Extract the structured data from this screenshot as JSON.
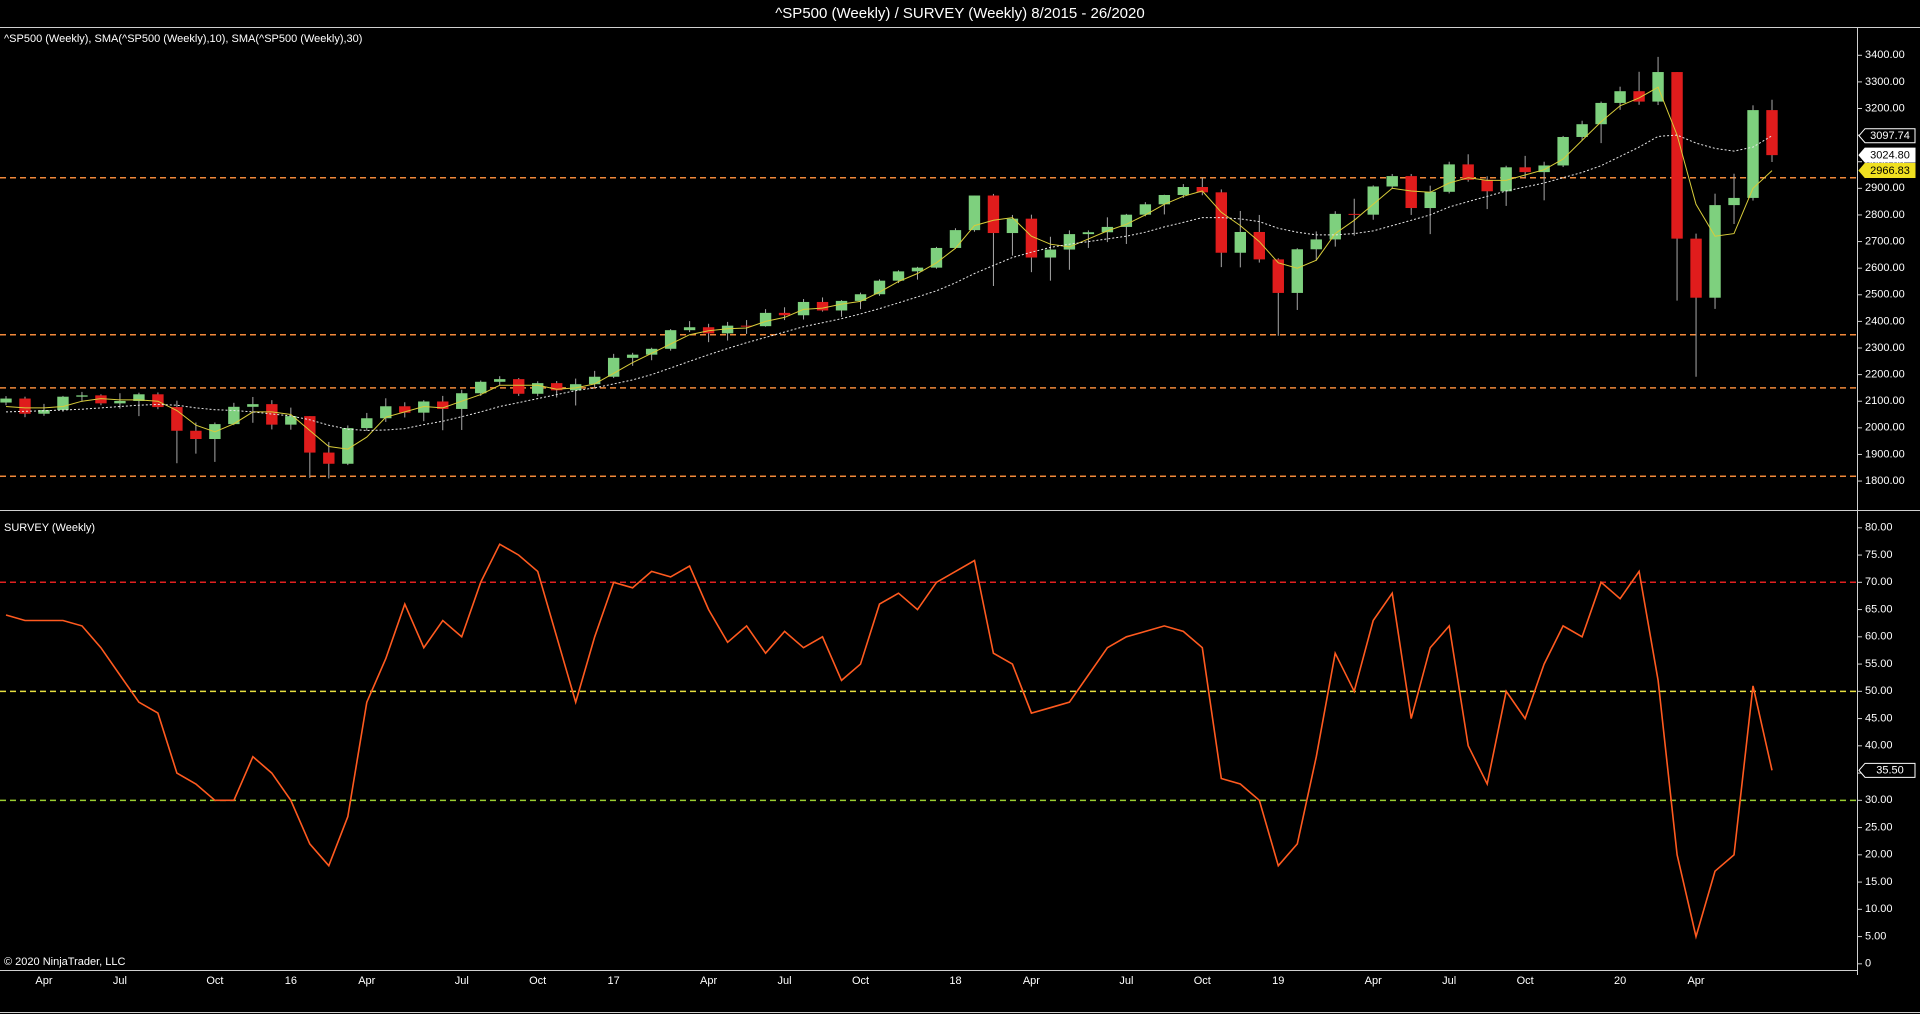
{
  "chart_data": [
    {
      "type": "candlestick",
      "title": "^SP500 (Weekly) / SURVEY (Weekly)  8/2015 - 26/2020",
      "label": "^SP500 (Weekly), SMA(^SP500 (Weekly),10), SMA(^SP500 (Weekly),30)",
      "up_color": "#7ed07e",
      "down_color": "#e01c1c",
      "wick_color": "#a8a8a8",
      "ylim": [
        1710,
        3480
      ],
      "yticks": [
        {
          "value": 1800,
          "label": "1800.00"
        },
        {
          "value": 1900,
          "label": "1900.00"
        },
        {
          "value": 2000,
          "label": "2000.00"
        },
        {
          "value": 2100,
          "label": "2100.00"
        },
        {
          "value": 2200,
          "label": "2200.00"
        },
        {
          "value": 2300,
          "label": "2300.00"
        },
        {
          "value": 2400,
          "label": "2400.00"
        },
        {
          "value": 2500,
          "label": "2500.00"
        },
        {
          "value": 2600,
          "label": "2600.00"
        },
        {
          "value": 2700,
          "label": "2700.00"
        },
        {
          "value": 2800,
          "label": "2800.00"
        },
        {
          "value": 2900,
          "label": "2900.00"
        },
        {
          "value": 3000,
          "label": "3000.00"
        },
        {
          "value": 3100,
          "label": "3100.00"
        },
        {
          "value": 3200,
          "label": "3200.00"
        },
        {
          "value": 3300,
          "label": "3300.00"
        },
        {
          "value": 3400,
          "label": "3400.00"
        }
      ],
      "open": [
        2095,
        2110,
        2053,
        2067,
        2117,
        2122,
        2092,
        2101,
        2126,
        2078,
        1989,
        1958,
        2014,
        2079,
        2089,
        2012,
        2044,
        1907,
        1865,
        1999,
        2036,
        2081,
        2057,
        2099,
        2071,
        2130,
        2173,
        2183,
        2128,
        2168,
        2141,
        2164,
        2192,
        2263,
        2275,
        2297,
        2367,
        2378,
        2355,
        2384,
        2382,
        2432,
        2423,
        2473,
        2441,
        2477,
        2502,
        2553,
        2588,
        2602,
        2676,
        2743,
        2873,
        2732,
        2786,
        2640,
        2670,
        2728,
        2735,
        2755,
        2801,
        2840,
        2875,
        2905,
        2885,
        2658,
        2736,
        2633,
        2507,
        2671,
        2708,
        2804,
        2801,
        2907,
        2946,
        2826,
        2887,
        2990,
        2932,
        2889,
        2979,
        2961,
        2986,
        3093,
        3141,
        3221,
        3265,
        3226,
        3337,
        2711,
        2489,
        2837,
        2864,
        3194
      ],
      "high": [
        2119,
        2117,
        2090,
        2120,
        2135,
        2126,
        2130,
        2132,
        2133,
        2102,
        2020,
        2020,
        2094,
        2116,
        2104,
        2076,
        2044,
        1947,
        2009,
        2056,
        2111,
        2096,
        2104,
        2120,
        2143,
        2178,
        2194,
        2187,
        2175,
        2176,
        2185,
        2214,
        2278,
        2282,
        2301,
        2371,
        2401,
        2391,
        2398,
        2405,
        2446,
        2453,
        2484,
        2490,
        2480,
        2508,
        2558,
        2592,
        2605,
        2680,
        2750,
        2873,
        2879,
        2800,
        2801,
        2718,
        2742,
        2742,
        2791,
        2804,
        2848,
        2876,
        2916,
        2940,
        2896,
        2815,
        2800,
        2637,
        2675,
        2738,
        2814,
        2861,
        2911,
        2954,
        2954,
        2910,
        3000,
        3028,
        2945,
        2985,
        3022,
        3000,
        3097,
        3154,
        3226,
        3282,
        3338,
        3394,
        3337,
        2730,
        2880,
        2955,
        3212,
        3233
      ],
      "low": [
        2085,
        2040,
        2045,
        2060,
        2098,
        2085,
        2072,
        2044,
        2070,
        1867,
        1903,
        1872,
        2010,
        2019,
        1994,
        1993,
        1812,
        1810,
        1860,
        1989,
        2022,
        2039,
        2025,
        1991,
        1992,
        2120,
        2160,
        2120,
        2119,
        2114,
        2084,
        2151,
        2187,
        2233,
        2254,
        2290,
        2360,
        2322,
        2328,
        2353,
        2380,
        2405,
        2407,
        2437,
        2417,
        2446,
        2496,
        2544,
        2557,
        2598,
        2673,
        2737,
        2533,
        2647,
        2585,
        2553,
        2594,
        2676,
        2698,
        2691,
        2795,
        2802,
        2864,
        2874,
        2604,
        2603,
        2621,
        2346,
        2443,
        2628,
        2681,
        2722,
        2782,
        2898,
        2800,
        2728,
        2881,
        2925,
        2822,
        2834,
        2941,
        2855,
        2980,
        3080,
        3070,
        3195,
        3214,
        3213,
        2478,
        2192,
        2447,
        2766,
        2854,
        2999
      ],
      "close": [
        2110,
        2053,
        2067,
        2117,
        2122,
        2092,
        2101,
        2126,
        2078,
        1989,
        1958,
        2014,
        2079,
        2089,
        2012,
        2044,
        1907,
        1865,
        1999,
        2036,
        2081,
        2057,
        2099,
        2071,
        2130,
        2173,
        2183,
        2128,
        2168,
        2141,
        2164,
        2192,
        2263,
        2275,
        2297,
        2367,
        2378,
        2355,
        2384,
        2382,
        2432,
        2423,
        2473,
        2441,
        2477,
        2502,
        2553,
        2588,
        2602,
        2676,
        2743,
        2873,
        2732,
        2786,
        2640,
        2670,
        2728,
        2735,
        2755,
        2801,
        2840,
        2875,
        2905,
        2885,
        2658,
        2736,
        2633,
        2507,
        2671,
        2708,
        2804,
        2801,
        2907,
        2946,
        2826,
        2887,
        2990,
        2932,
        2889,
        2979,
        2961,
        2986,
        3093,
        3141,
        3221,
        3265,
        3226,
        3337,
        2711,
        2489,
        2837,
        2864,
        3194,
        3024.8
      ],
      "overlays": [
        {
          "color": "#d8cc3a",
          "dash": "none",
          "values": [
            2080,
            2075,
            2075,
            2080,
            2100,
            2110,
            2105,
            2105,
            2100,
            2065,
            2010,
            1985,
            2015,
            2060,
            2060,
            2050,
            1990,
            1930,
            1920,
            1965,
            2040,
            2060,
            2080,
            2075,
            2100,
            2125,
            2160,
            2160,
            2160,
            2145,
            2150,
            2165,
            2205,
            2245,
            2280,
            2315,
            2350,
            2365,
            2372,
            2375,
            2400,
            2415,
            2445,
            2450,
            2465,
            2475,
            2510,
            2550,
            2580,
            2620,
            2675,
            2760,
            2780,
            2790,
            2720,
            2690,
            2680,
            2710,
            2740,
            2765,
            2800,
            2840,
            2870,
            2890,
            2810,
            2760,
            2700,
            2620,
            2600,
            2630,
            2730,
            2780,
            2840,
            2900,
            2890,
            2885,
            2920,
            2940,
            2930,
            2930,
            2950,
            2970,
            3010,
            3080,
            3150,
            3210,
            3240,
            3280,
            3100,
            2840,
            2720,
            2730,
            2900,
            2966.83
          ]
        },
        {
          "color": "#e8e8e8",
          "dash": "2 2",
          "values": [
            2060,
            2062,
            2064,
            2067,
            2070,
            2075,
            2080,
            2085,
            2088,
            2085,
            2075,
            2068,
            2065,
            2060,
            2052,
            2045,
            2030,
            2010,
            1995,
            1990,
            1992,
            1997,
            2012,
            2025,
            2042,
            2060,
            2080,
            2095,
            2110,
            2125,
            2140,
            2150,
            2165,
            2180,
            2200,
            2225,
            2250,
            2275,
            2298,
            2320,
            2340,
            2360,
            2380,
            2395,
            2410,
            2428,
            2448,
            2470,
            2492,
            2515,
            2545,
            2580,
            2610,
            2640,
            2660,
            2678,
            2690,
            2700,
            2710,
            2720,
            2735,
            2755,
            2772,
            2790,
            2790,
            2785,
            2775,
            2750,
            2735,
            2725,
            2725,
            2730,
            2740,
            2760,
            2780,
            2800,
            2830,
            2850,
            2870,
            2890,
            2905,
            2920,
            2940,
            2960,
            2985,
            3020,
            3055,
            3095,
            3100,
            3070,
            3050,
            3040,
            3055,
            3097.74
          ]
        }
      ],
      "reference_lines": [
        {
          "value": 2940,
          "color": "#f0883a"
        },
        {
          "value": 2350,
          "color": "#f0883a"
        },
        {
          "value": 2150,
          "color": "#f0883a"
        },
        {
          "value": 1818,
          "color": "#f0883a"
        }
      ],
      "markers": [
        {
          "value": 3097.74,
          "background": "#000000",
          "foreground": "#ffffff"
        },
        {
          "value": 3024.8,
          "label": "3024.80",
          "background": "#ffffff",
          "foreground": "#000000"
        },
        {
          "value": 2966.83,
          "background": "#f0e020",
          "foreground": "#000000"
        }
      ]
    },
    {
      "type": "line",
      "label": "SURVEY (Weekly)",
      "credit": "© 2020 NinjaTrader, LLC",
      "color": "#ff5a1f",
      "ylim": [
        -1.5,
        81.8
      ],
      "yticks": [
        0,
        {
          "value": 5,
          "label": "5.00"
        },
        {
          "value": 10,
          "label": "10.00"
        },
        {
          "value": 15,
          "label": "15.00"
        },
        {
          "value": 20,
          "label": "20.00"
        },
        {
          "value": 25,
          "label": "25.00"
        },
        {
          "value": 30,
          "label": "30.00"
        },
        {
          "value": 35,
          "label": "35.00"
        },
        {
          "value": 40,
          "label": "40.00"
        },
        {
          "value": 45,
          "label": "45.00"
        },
        {
          "value": 50,
          "label": "50.00"
        },
        {
          "value": 55,
          "label": "55.00"
        },
        {
          "value": 60,
          "label": "60.00"
        },
        {
          "value": 65,
          "label": "65.00"
        },
        {
          "value": 70,
          "label": "70.00"
        },
        {
          "value": 75,
          "label": "75.00"
        },
        {
          "value": 80,
          "label": "80.00"
        }
      ],
      "categories": [
        null,
        null,
        "Apr",
        null,
        null,
        null,
        "Jul",
        null,
        null,
        null,
        null,
        "Oct",
        null,
        null,
        null,
        "16",
        null,
        null,
        null,
        "Apr",
        null,
        null,
        null,
        null,
        "Jul",
        null,
        null,
        null,
        "Oct",
        null,
        null,
        null,
        "17",
        null,
        null,
        null,
        null,
        "Apr",
        null,
        null,
        null,
        "Jul",
        null,
        null,
        null,
        "Oct",
        null,
        null,
        null,
        null,
        "18",
        null,
        null,
        null,
        "Apr",
        null,
        null,
        null,
        null,
        "Jul",
        null,
        null,
        null,
        "Oct",
        null,
        null,
        null,
        "19",
        null,
        null,
        null,
        null,
        "Apr",
        null,
        null,
        null,
        "Jul",
        null,
        null,
        null,
        "Oct",
        null,
        null,
        null,
        null,
        "20",
        null,
        null,
        null,
        "Apr",
        null,
        null,
        null,
        null
      ],
      "values": [
        64,
        63,
        63,
        63,
        62,
        58,
        53,
        48,
        46,
        35,
        33,
        30,
        30,
        38,
        35,
        30,
        22,
        18,
        27,
        48,
        56,
        66,
        58,
        63,
        60,
        70,
        77,
        75,
        72,
        60,
        48,
        60,
        70,
        69,
        72,
        71,
        73,
        65,
        59,
        62,
        57,
        61,
        58,
        60,
        52,
        55,
        66,
        68,
        65,
        70,
        72,
        74,
        57,
        55,
        46,
        47,
        48,
        53,
        58,
        60,
        61,
        62,
        61,
        58,
        34,
        33,
        30,
        18,
        22,
        38,
        57,
        50,
        63,
        68,
        45,
        58,
        62,
        40,
        33,
        50,
        45,
        55,
        62,
        60,
        70,
        67,
        72,
        52,
        20,
        5,
        17,
        20,
        51,
        35.5
      ],
      "reference_lines": [
        {
          "value": 70,
          "color": "#e02020"
        },
        {
          "value": 50,
          "color": "#e8e040"
        },
        {
          "value": 30,
          "color": "#9acd32"
        }
      ],
      "markers": [
        {
          "value": 35.5,
          "label": "35.50",
          "background": "#000000",
          "foreground": "#ffffff"
        }
      ]
    }
  ]
}
